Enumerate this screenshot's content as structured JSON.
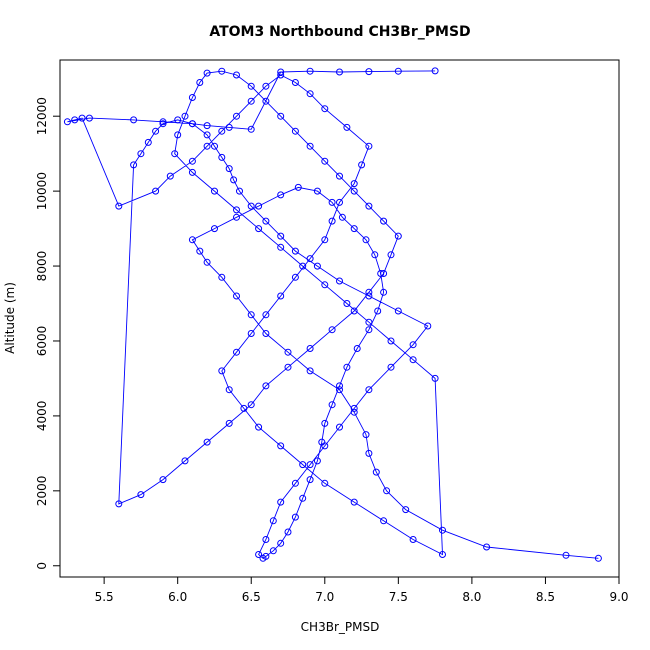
{
  "chart_data": {
    "type": "line",
    "title": "ATOM3 Northbound CH3Br_PMSD",
    "xlabel": "CH3Br_PMSD",
    "ylabel": "Altitude (m)",
    "xlim": [
      5.2,
      9.0
    ],
    "ylim": [
      -300,
      13500
    ],
    "x_ticks": [
      5.5,
      6.0,
      6.5,
      7.0,
      7.5,
      8.0,
      8.5,
      9.0
    ],
    "x_tick_labels": [
      "5.5",
      "6.0",
      "6.5",
      "7.0",
      "7.5",
      "8.0",
      "8.5",
      "9.0"
    ],
    "y_ticks": [
      0,
      2000,
      4000,
      6000,
      8000,
      10000,
      12000
    ],
    "y_tick_labels": [
      "0",
      "2000",
      "4000",
      "6000",
      "8000",
      "10000",
      "12000"
    ],
    "grid": false,
    "legend": "none",
    "colors": {
      "series": "#0000ff",
      "axis": "#000000",
      "background": "#ffffff"
    },
    "series": [
      {
        "marker": "open-circle",
        "x": [
          8.86,
          8.64,
          8.1,
          7.8,
          7.55,
          7.42,
          7.35,
          7.3,
          7.28,
          7.2,
          7.1,
          6.9,
          6.75,
          6.6,
          6.5,
          6.4,
          6.3,
          6.2,
          6.15,
          6.1,
          6.25,
          6.4,
          6.55,
          6.7,
          6.82,
          6.95,
          7.05,
          7.12,
          7.2,
          7.28,
          7.34,
          7.38,
          7.4,
          7.36,
          7.3,
          7.22,
          7.15,
          7.1,
          7.05,
          7.0,
          6.98,
          6.95,
          6.9,
          6.85,
          6.8,
          6.75,
          6.7,
          6.65,
          6.6,
          6.58,
          6.55,
          6.6,
          6.65,
          6.7,
          6.8,
          6.9,
          7.0,
          7.1,
          7.2,
          7.3,
          7.45,
          7.6,
          7.7,
          7.5,
          7.3,
          7.1,
          6.95,
          6.8,
          6.7,
          6.6,
          6.5,
          6.42,
          6.38,
          6.35,
          6.3,
          6.25,
          6.2,
          6.1,
          6.0,
          5.9,
          5.85,
          5.8,
          5.75,
          5.7,
          5.6,
          5.75,
          5.9,
          6.05,
          6.2,
          6.35,
          6.5,
          6.6,
          6.75,
          6.9,
          7.05,
          7.2,
          7.3,
          7.4,
          7.45,
          7.5,
          7.4,
          7.3,
          7.2,
          7.1,
          7.0,
          6.9,
          6.8,
          6.7,
          6.6,
          6.5,
          6.4,
          6.3,
          6.2,
          6.15,
          6.1,
          6.05,
          6.0,
          5.98,
          6.1,
          6.25,
          6.4,
          6.55,
          6.7,
          6.85,
          7.0,
          7.15,
          7.3,
          7.45,
          7.6,
          7.75,
          7.8,
          7.6,
          7.4,
          7.2,
          7.0,
          6.85,
          6.7,
          6.55,
          6.45,
          6.35,
          6.3,
          6.4,
          6.5,
          6.6,
          6.7,
          6.8,
          6.9,
          7.0,
          7.05,
          7.1,
          7.2,
          7.25,
          7.3,
          7.15,
          7.0,
          6.9,
          6.8,
          6.7,
          6.6,
          6.5,
          6.4,
          6.3,
          6.2,
          6.1,
          5.95,
          5.85,
          5.6,
          5.35,
          5.3,
          5.25,
          5.4,
          5.7,
          5.9,
          6.1,
          6.2,
          6.35,
          6.5,
          6.7,
          6.9,
          7.1,
          7.3,
          7.5,
          7.75
        ],
        "y": [
          200,
          280,
          500,
          950,
          1500,
          2000,
          2500,
          3000,
          3500,
          4100,
          4700,
          5200,
          5700,
          6200,
          6700,
          7200,
          7700,
          8100,
          8400,
          8700,
          9000,
          9300,
          9600,
          9900,
          10100,
          10000,
          9700,
          9300,
          9000,
          8700,
          8300,
          7800,
          7300,
          6800,
          6300,
          5800,
          5300,
          4800,
          4300,
          3800,
          3300,
          2800,
          2300,
          1800,
          1300,
          900,
          600,
          400,
          250,
          200,
          300,
          700,
          1200,
          1700,
          2200,
          2700,
          3200,
          3700,
          4200,
          4700,
          5300,
          5900,
          6400,
          6800,
          7200,
          7600,
          8000,
          8400,
          8800,
          9200,
          9600,
          10000,
          10300,
          10600,
          10900,
          11200,
          11500,
          11800,
          11900,
          11800,
          11600,
          11300,
          11000,
          10700,
          1650,
          1900,
          2300,
          2800,
          3300,
          3800,
          4300,
          4800,
          5300,
          5800,
          6300,
          6800,
          7300,
          7800,
          8300,
          8800,
          9200,
          9600,
          10000,
          10400,
          10800,
          11200,
          11600,
          12000,
          12400,
          12800,
          13100,
          13200,
          13150,
          12900,
          12500,
          12000,
          11500,
          11000,
          10500,
          10000,
          9500,
          9000,
          8500,
          8000,
          7500,
          7000,
          6500,
          6000,
          5500,
          5000,
          300,
          700,
          1200,
          1700,
          2200,
          2700,
          3200,
          3700,
          4200,
          4700,
          5200,
          5700,
          6200,
          6700,
          7200,
          7700,
          8200,
          8700,
          9200,
          9700,
          10200,
          10700,
          11200,
          11700,
          12200,
          12600,
          12900,
          13100,
          12800,
          12400,
          12000,
          11600,
          11200,
          10800,
          10400,
          10000,
          9600,
          11950,
          11900,
          11850,
          11950,
          11900,
          11850,
          11800,
          11750,
          11700,
          11650,
          13180,
          13200,
          13180,
          13190,
          13200,
          13210
        ]
      }
    ]
  }
}
